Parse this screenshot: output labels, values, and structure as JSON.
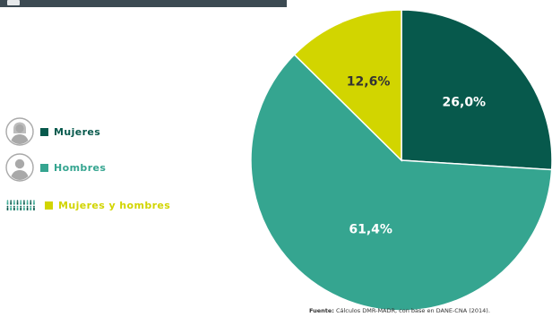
{
  "colors": {
    "mujeres": "#07594c",
    "hombres": "#35a590",
    "ambos": "#d2d500",
    "label_light": "#ffffff",
    "label_dark": "#333333"
  },
  "legend": [
    {
      "label": "Mujeres",
      "icon": "woman-avatar-icon",
      "color": "#07594c"
    },
    {
      "label": "Hombres",
      "icon": "man-avatar-icon",
      "color": "#35a590"
    },
    {
      "label": "Mujeres y hombres",
      "icon": "people-group-icon",
      "color": "#d2d500"
    }
  ],
  "chart_data": {
    "type": "pie",
    "title": "",
    "categories": [
      "Mujeres",
      "Hombres",
      "Mujeres y hombres"
    ],
    "values": [
      26.0,
      61.4,
      12.6
    ],
    "labels": [
      "26,0%",
      "61,4%",
      "12,6%"
    ],
    "colors": [
      "#07594c",
      "#35a590",
      "#d2d500"
    ],
    "start_angle_deg": 0,
    "direction": "clockwise",
    "legend_position": "left"
  },
  "source": {
    "label": "Fuente:",
    "text": "Cálculos DMR-MADR, con base en DANE-CNA (2014)."
  }
}
